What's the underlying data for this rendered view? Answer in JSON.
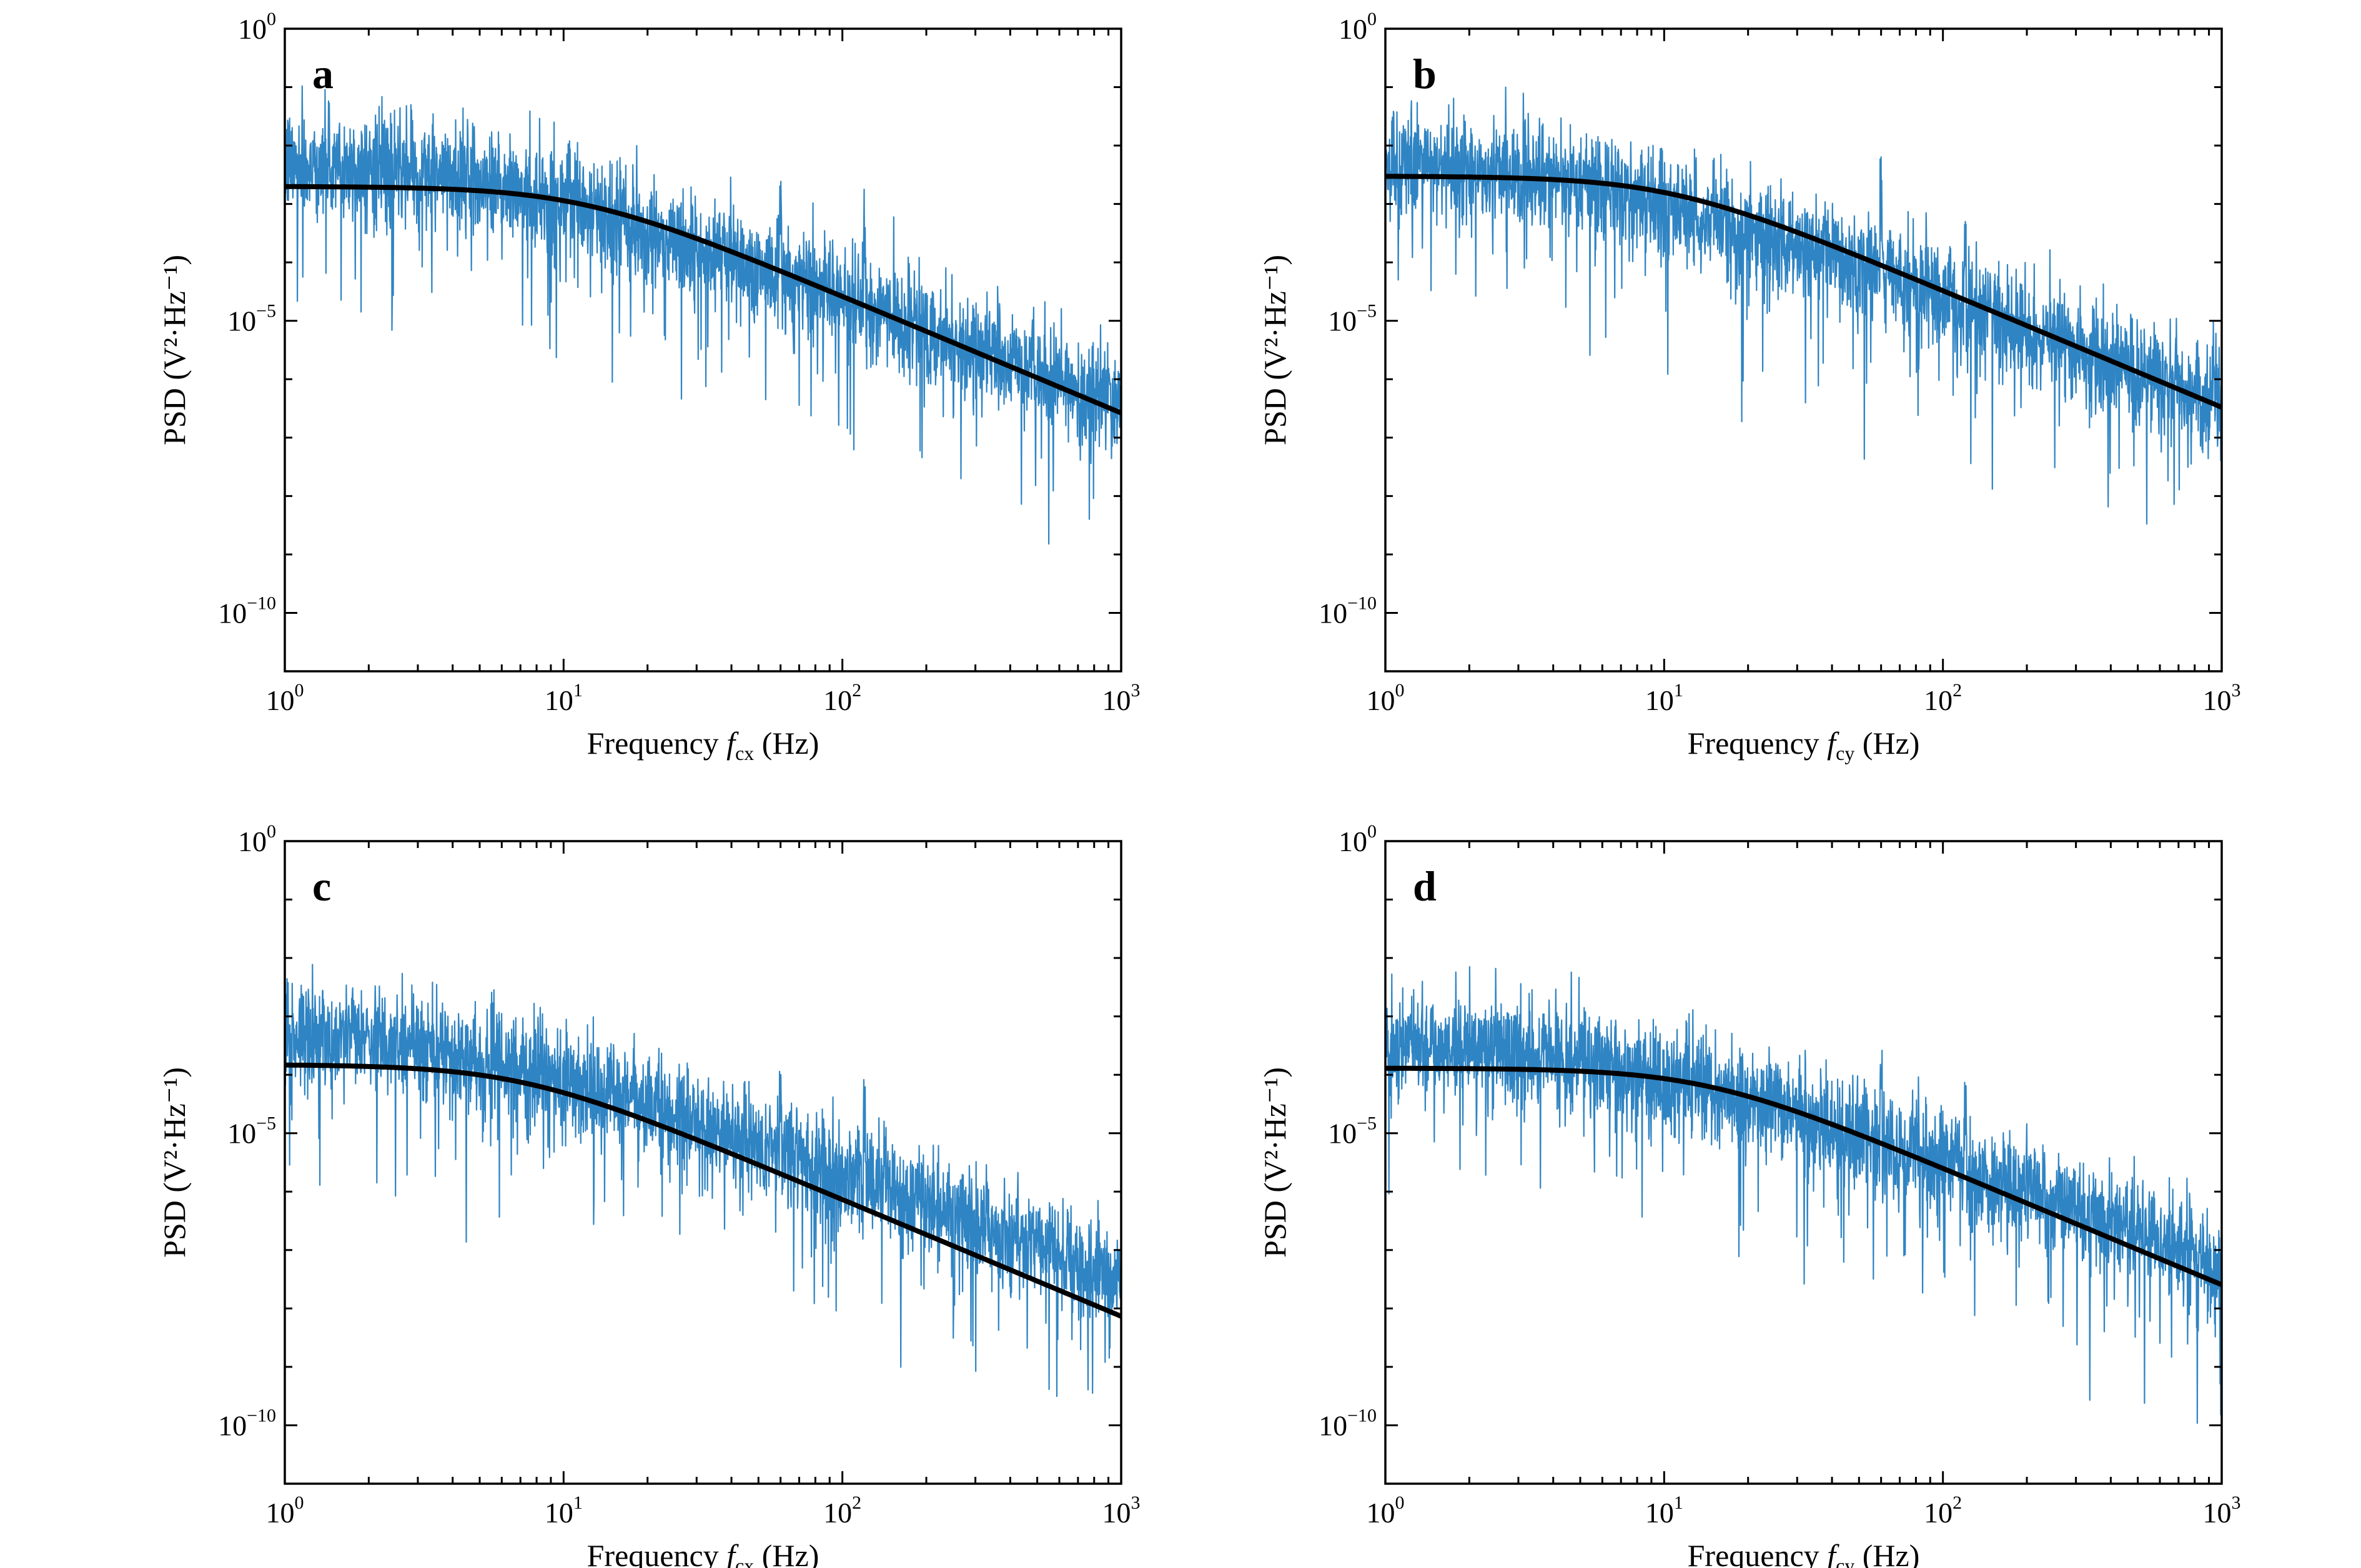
{
  "chart_data": [
    {
      "type": "line",
      "panel": "a",
      "xlabel": "Frequency f_cx (Hz)",
      "xlabel_main": "Frequency",
      "xlabel_var": "f",
      "xlabel_sub": "cx",
      "xlabel_unit": "(Hz)",
      "ylabel": "PSD (V²·Hz⁻¹)",
      "xscale": "log",
      "yscale": "log",
      "xlim": [
        1,
        1000
      ],
      "ylim": [
        1e-11,
        1
      ],
      "x_ticks": [
        {
          "base": "10",
          "exp": "0"
        },
        {
          "base": "10",
          "exp": "1"
        },
        {
          "base": "10",
          "exp": "2"
        },
        {
          "base": "10",
          "exp": "3"
        }
      ],
      "y_ticks": [
        {
          "value": 1,
          "base": "10",
          "exp": "0"
        },
        {
          "value": 1e-05,
          "base": "10",
          "exp": "−5"
        },
        {
          "value": 1e-10,
          "base": "10",
          "exp": "−10"
        }
      ],
      "series": [
        {
          "kind": "measured",
          "color": "#0a6fb8",
          "noise_sigma_decades": 0.45,
          "peak_freq_hz": [
            60,
            120
          ],
          "x": [
            1,
            2,
            5,
            10,
            20,
            50,
            100,
            200,
            500,
            1000
          ],
          "y": [
            0.005,
            0.004,
            0.0025,
            0.001,
            0.00035,
            8e-05,
            2.5e-05,
            7e-06,
            1.2e-06,
            3.5e-07
          ]
        },
        {
          "kind": "fit",
          "color": "#000000",
          "fc_hz": 11.5,
          "d0": 0.002,
          "x_range": [
            1,
            1000
          ]
        }
      ]
    },
    {
      "type": "line",
      "panel": "b",
      "xlabel": "Frequency f_cy (Hz)",
      "xlabel_main": "Frequency",
      "xlabel_var": "f",
      "xlabel_sub": "cy",
      "xlabel_unit": "(Hz)",
      "ylabel": "PSD (V²·Hz⁻¹)",
      "xscale": "log",
      "yscale": "log",
      "xlim": [
        1,
        1000
      ],
      "ylim": [
        1e-11,
        1
      ],
      "x_ticks": [
        {
          "base": "10",
          "exp": "0"
        },
        {
          "base": "10",
          "exp": "1"
        },
        {
          "base": "10",
          "exp": "2"
        },
        {
          "base": "10",
          "exp": "3"
        }
      ],
      "y_ticks": [
        {
          "value": 1,
          "base": "10",
          "exp": "0"
        },
        {
          "value": 1e-05,
          "base": "10",
          "exp": "−5"
        },
        {
          "value": 1e-10,
          "base": "10",
          "exp": "−10"
        }
      ],
      "series": [
        {
          "kind": "measured",
          "color": "#0a6fb8",
          "noise_sigma_decades": 0.45,
          "peak_freq_hz": [
            60,
            120
          ],
          "x": [
            1,
            2,
            5,
            10,
            20,
            50,
            100,
            200,
            500,
            1000
          ],
          "y": [
            0.005,
            0.004,
            0.0025,
            0.001,
            0.00035,
            8e-05,
            2.5e-05,
            7e-06,
            1.2e-06,
            4e-07
          ]
        },
        {
          "kind": "fit",
          "color": "#000000",
          "fc_hz": 10.5,
          "d0": 0.003,
          "x_range": [
            1,
            1000
          ]
        }
      ]
    },
    {
      "type": "line",
      "panel": "c",
      "xlabel": "Frequency f_cx (Hz)",
      "xlabel_main": "Frequency",
      "xlabel_var": "f",
      "xlabel_sub": "cx",
      "xlabel_unit": "(Hz)",
      "ylabel": "PSD (V²·Hz⁻¹)",
      "xscale": "log",
      "yscale": "log",
      "xlim": [
        1,
        1000
      ],
      "ylim": [
        1e-11,
        1
      ],
      "x_ticks": [
        {
          "base": "10",
          "exp": "0"
        },
        {
          "base": "10",
          "exp": "1"
        },
        {
          "base": "10",
          "exp": "2"
        },
        {
          "base": "10",
          "exp": "3"
        }
      ],
      "y_ticks": [
        {
          "value": 1,
          "base": "10",
          "exp": "0"
        },
        {
          "value": 1e-05,
          "base": "10",
          "exp": "−5"
        },
        {
          "value": 1e-10,
          "base": "10",
          "exp": "−10"
        }
      ],
      "series": [
        {
          "kind": "measured",
          "color": "#0a6fb8",
          "noise_sigma_decades": 0.45,
          "peak_freq_hz": [
            60,
            120
          ],
          "x": [
            1,
            2,
            5,
            10,
            20,
            50,
            100,
            200,
            500,
            1000
          ],
          "y": [
            0.0005,
            0.0004,
            0.0002,
            8e-05,
            3e-05,
            6e-06,
            2e-06,
            6e-07,
            1.2e-07,
            3e-08
          ]
        },
        {
          "kind": "fit",
          "color": "#000000",
          "fc_hz": 7,
          "d0": 0.00015,
          "x_range": [
            1,
            1000
          ]
        }
      ]
    },
    {
      "type": "line",
      "panel": "d",
      "xlabel": "Frequency f_cy (Hz)",
      "xlabel_main": "Frequency",
      "xlabel_var": "f",
      "xlabel_sub": "cy",
      "xlabel_unit": "(Hz)",
      "ylabel": "PSD (V²·Hz⁻¹)",
      "xscale": "log",
      "yscale": "log",
      "xlim": [
        1,
        1000
      ],
      "ylim": [
        1e-11,
        1
      ],
      "x_ticks": [
        {
          "base": "10",
          "exp": "0"
        },
        {
          "base": "10",
          "exp": "1"
        },
        {
          "base": "10",
          "exp": "2"
        },
        {
          "base": "10",
          "exp": "3"
        }
      ],
      "y_ticks": [
        {
          "value": 1,
          "base": "10",
          "exp": "0"
        },
        {
          "value": 1e-05,
          "base": "10",
          "exp": "−5"
        },
        {
          "value": 1e-10,
          "base": "10",
          "exp": "−10"
        }
      ],
      "series": [
        {
          "kind": "measured",
          "color": "#0a6fb8",
          "noise_sigma_decades": 0.45,
          "peak_freq_hz": [
            60,
            120
          ],
          "x": [
            1,
            2,
            5,
            10,
            20,
            50,
            100,
            200,
            500,
            1000
          ],
          "y": [
            0.0004,
            0.0003,
            0.00018,
            8e-05,
            3.5e-05,
            9e-06,
            3.5e-06,
            1e-06,
            2e-07,
            6e-08
          ]
        },
        {
          "kind": "fit",
          "color": "#000000",
          "fc_hz": 14,
          "d0": 0.00013,
          "x_range": [
            1,
            1000
          ]
        }
      ]
    }
  ]
}
